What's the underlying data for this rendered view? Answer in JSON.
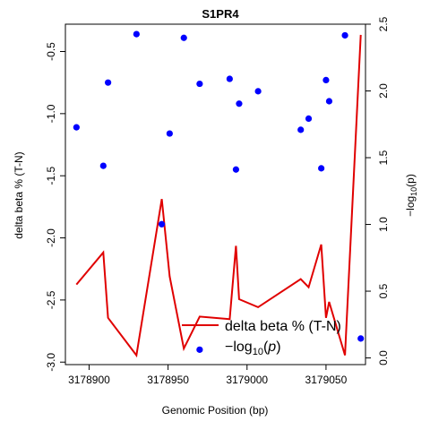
{
  "chart_data": {
    "type": "scatter",
    "title": "S1PR4",
    "xlabel": "Genomic Position (bp)",
    "ylabel": "delta beta % (T-N)",
    "y2label_base": "−log",
    "y2label_sub": "10",
    "y2label_arg": "(p)",
    "xlim": [
      3178885,
      3179075
    ],
    "ylim": [
      -3.02,
      -0.28
    ],
    "y2lim": [
      -0.05,
      2.5
    ],
    "x_ticks": [
      3178900,
      3178950,
      3179000,
      3179050
    ],
    "x_tick_labels": [
      "3178900",
      "3178950",
      "3179000",
      "3179050"
    ],
    "y_ticks": [
      -3.0,
      -2.5,
      -2.0,
      -1.5,
      -1.0,
      -0.5
    ],
    "y_tick_labels": [
      "-3.0",
      "-2.5",
      "-2.0",
      "-1.5",
      "-1.0",
      "-0.5"
    ],
    "y2_ticks": [
      0.0,
      0.5,
      1.0,
      1.5,
      2.0,
      2.5
    ],
    "y2_tick_labels": [
      "0.0",
      "0.5",
      "1.0",
      "1.5",
      "2.0",
      "2.5"
    ],
    "grid": false,
    "legend_position": "bottom-right",
    "series": [
      {
        "name": "delta beta % (T-N)",
        "type": "scatter",
        "axis": "left",
        "color": "#0000ff",
        "points": [
          {
            "x": 3178892,
            "y": -1.11
          },
          {
            "x": 3178909,
            "y": -1.42
          },
          {
            "x": 3178912,
            "y": -0.75
          },
          {
            "x": 3178930,
            "y": -0.36
          },
          {
            "x": 3178946,
            "y": -1.89
          },
          {
            "x": 3178951,
            "y": -1.16
          },
          {
            "x": 3178960,
            "y": -0.39
          },
          {
            "x": 3178970,
            "y": -0.76
          },
          {
            "x": 3178970,
            "y": -2.9
          },
          {
            "x": 3178989,
            "y": -0.72
          },
          {
            "x": 3178993,
            "y": -1.45
          },
          {
            "x": 3178995,
            "y": -0.92
          },
          {
            "x": 3179007,
            "y": -0.82
          },
          {
            "x": 3179034,
            "y": -1.13
          },
          {
            "x": 3179039,
            "y": -1.04
          },
          {
            "x": 3179047,
            "y": -1.44
          },
          {
            "x": 3179050,
            "y": -0.73
          },
          {
            "x": 3179052,
            "y": -0.9
          },
          {
            "x": 3179062,
            "y": -0.37
          },
          {
            "x": 3179072,
            "y": -2.81
          }
        ]
      },
      {
        "name": "−log10(p)",
        "type": "line",
        "axis": "right",
        "color": "#e00000",
        "points": [
          {
            "x": 3178892,
            "y": 0.55
          },
          {
            "x": 3178909,
            "y": 0.79
          },
          {
            "x": 3178912,
            "y": 0.3
          },
          {
            "x": 3178930,
            "y": 0.02
          },
          {
            "x": 3178946,
            "y": 1.19
          },
          {
            "x": 3178951,
            "y": 0.61
          },
          {
            "x": 3178960,
            "y": 0.07
          },
          {
            "x": 3178970,
            "y": 0.31
          },
          {
            "x": 3178989,
            "y": 0.29
          },
          {
            "x": 3178993,
            "y": 0.84
          },
          {
            "x": 3178995,
            "y": 0.44
          },
          {
            "x": 3179007,
            "y": 0.38
          },
          {
            "x": 3179034,
            "y": 0.59
          },
          {
            "x": 3179039,
            "y": 0.53
          },
          {
            "x": 3179047,
            "y": 0.85
          },
          {
            "x": 3179050,
            "y": 0.3
          },
          {
            "x": 3179052,
            "y": 0.42
          },
          {
            "x": 3179062,
            "y": 0.02
          },
          {
            "x": 3179072,
            "y": 2.42
          }
        ]
      }
    ]
  }
}
